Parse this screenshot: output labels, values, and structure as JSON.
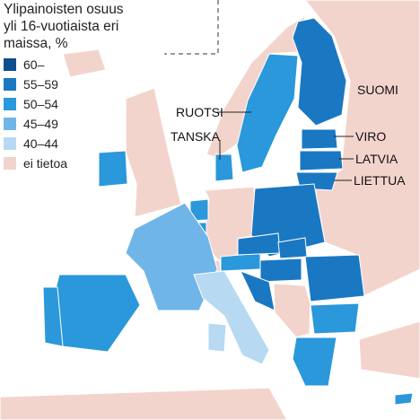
{
  "title_lines": [
    "Ylipainoisten osuus",
    "yli 16-vuotiaista eri",
    "maissa, %"
  ],
  "legend": [
    {
      "label": "60–",
      "color": "#0d4e8c"
    },
    {
      "label": "55–59",
      "color": "#1a78c2"
    },
    {
      "label": "50–54",
      "color": "#2a98da"
    },
    {
      "label": "45–49",
      "color": "#70b5e8"
    },
    {
      "label": "40–44",
      "color": "#b7d9f2"
    },
    {
      "label": "ei tietoa",
      "color": "#f3d4cc"
    }
  ],
  "labels": [
    "SUOMI",
    "RUOTSI",
    "TANSKA",
    "VIRO",
    "LATVIA",
    "LIETTUA"
  ]
}
